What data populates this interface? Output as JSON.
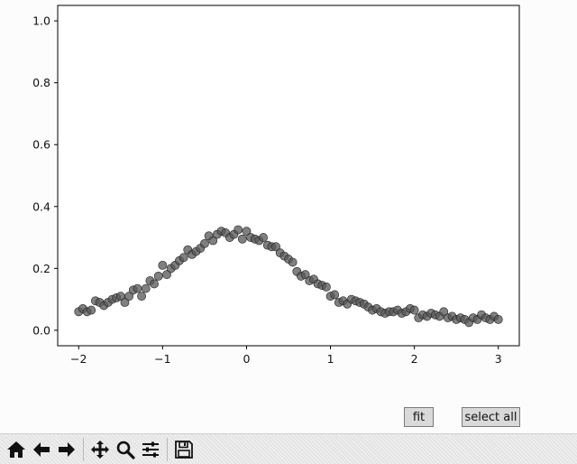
{
  "chart_data": {
    "type": "scatter",
    "xlim": [
      -2.25,
      3.25
    ],
    "ylim": [
      -0.05,
      1.05
    ],
    "x_ticks": [
      -2,
      -1,
      0,
      1,
      2,
      3
    ],
    "y_ticks": [
      0.0,
      0.2,
      0.4,
      0.6,
      0.8,
      1.0
    ],
    "x_tick_labels": [
      "−2",
      "−1",
      "0",
      "1",
      "2",
      "3"
    ],
    "y_tick_labels": [
      "0.0",
      "0.2",
      "0.4",
      "0.6",
      "0.8",
      "1.0"
    ],
    "marker_color": "#555555",
    "grid": false,
    "points": {
      "x": [
        -2.0,
        -1.95,
        -1.9,
        -1.85,
        -1.8,
        -1.75,
        -1.7,
        -1.65,
        -1.6,
        -1.55,
        -1.5,
        -1.45,
        -1.4,
        -1.35,
        -1.3,
        -1.25,
        -1.2,
        -1.15,
        -1.1,
        -1.05,
        -1.0,
        -0.95,
        -0.9,
        -0.85,
        -0.8,
        -0.75,
        -0.7,
        -0.65,
        -0.6,
        -0.55,
        -0.5,
        -0.45,
        -0.4,
        -0.35,
        -0.3,
        -0.25,
        -0.2,
        -0.15,
        -0.1,
        -0.05,
        0.0,
        0.05,
        0.1,
        0.15,
        0.2,
        0.25,
        0.3,
        0.35,
        0.4,
        0.45,
        0.5,
        0.55,
        0.6,
        0.65,
        0.7,
        0.75,
        0.8,
        0.85,
        0.9,
        0.95,
        1.0,
        1.05,
        1.1,
        1.15,
        1.2,
        1.25,
        1.3,
        1.35,
        1.4,
        1.45,
        1.5,
        1.55,
        1.6,
        1.65,
        1.7,
        1.75,
        1.8,
        1.85,
        1.9,
        1.95,
        2.0,
        2.05,
        2.1,
        2.15,
        2.2,
        2.25,
        2.3,
        2.35,
        2.4,
        2.45,
        2.5,
        2.55,
        2.6,
        2.65,
        2.7,
        2.75,
        2.8,
        2.85,
        2.9,
        2.95,
        3.0
      ],
      "y": [
        0.06,
        0.07,
        0.06,
        0.065,
        0.095,
        0.09,
        0.08,
        0.09,
        0.1,
        0.105,
        0.11,
        0.09,
        0.11,
        0.13,
        0.135,
        0.11,
        0.135,
        0.16,
        0.15,
        0.175,
        0.21,
        0.18,
        0.2,
        0.21,
        0.225,
        0.235,
        0.26,
        0.245,
        0.255,
        0.265,
        0.28,
        0.305,
        0.29,
        0.31,
        0.32,
        0.315,
        0.3,
        0.31,
        0.325,
        0.295,
        0.32,
        0.3,
        0.295,
        0.29,
        0.3,
        0.275,
        0.27,
        0.27,
        0.25,
        0.24,
        0.23,
        0.22,
        0.19,
        0.175,
        0.18,
        0.16,
        0.165,
        0.15,
        0.145,
        0.14,
        0.11,
        0.115,
        0.09,
        0.095,
        0.085,
        0.1,
        0.095,
        0.09,
        0.085,
        0.075,
        0.065,
        0.07,
        0.06,
        0.055,
        0.06,
        0.06,
        0.065,
        0.055,
        0.06,
        0.07,
        0.065,
        0.04,
        0.05,
        0.045,
        0.055,
        0.05,
        0.045,
        0.06,
        0.04,
        0.045,
        0.035,
        0.04,
        0.035,
        0.025,
        0.04,
        0.035,
        0.05,
        0.04,
        0.035,
        0.045,
        0.035
      ]
    }
  },
  "buttons": {
    "fit_label": "fit",
    "select_all_label": "select all"
  },
  "toolbar": {
    "icons": [
      "home-icon",
      "back-arrow-icon",
      "forward-arrow-icon",
      "pan-icon",
      "zoom-icon",
      "configure-subplots-icon",
      "save-icon"
    ]
  }
}
